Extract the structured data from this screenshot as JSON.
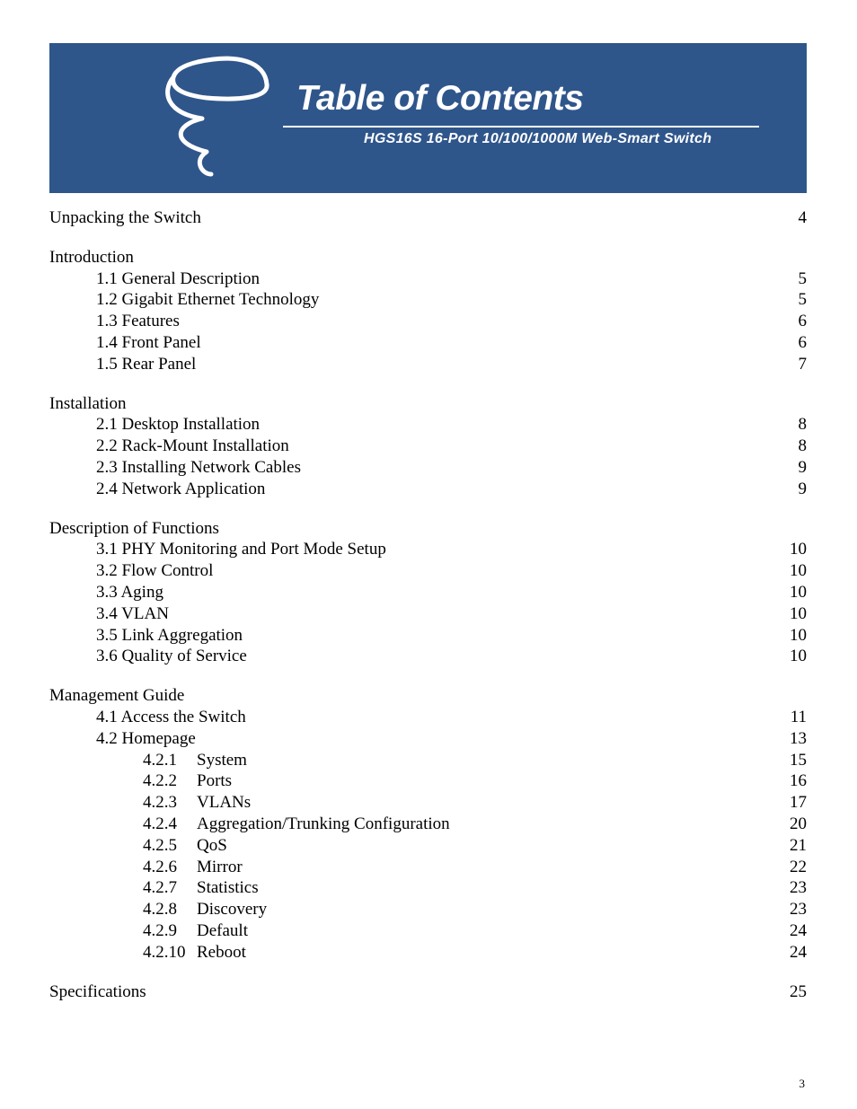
{
  "banner": {
    "bg_color": "#2f568b",
    "title": "Table of Contents",
    "subtitle": "HGS16S  16-Port 10/100/1000M Web-Smart Switch",
    "text_color": "#ffffff",
    "title_fontsize": 39,
    "subtitle_fontsize": 16,
    "logo_stroke": "#ffffff"
  },
  "page_number": "3",
  "toc": {
    "sections": [
      {
        "heading": "Unpacking the Switch",
        "page": "4",
        "items": []
      },
      {
        "heading": "Introduction",
        "page": "",
        "items": [
          {
            "num": "1.1",
            "label": "General Description",
            "page": "5"
          },
          {
            "num": "1.2",
            "label": "Gigabit Ethernet Technology",
            "page": "5"
          },
          {
            "num": "1.3",
            "label": "Features",
            "page": "6"
          },
          {
            "num": "1.4",
            "label": "Front Panel",
            "page": "6"
          },
          {
            "num": "1.5",
            "label": "Rear Panel",
            "page": "7"
          }
        ]
      },
      {
        "heading": "Installation",
        "page": "",
        "items": [
          {
            "num": "2.1",
            "label": "Desktop Installation",
            "page": "8"
          },
          {
            "num": "2.2",
            "label": "Rack-Mount Installation",
            "page": "8"
          },
          {
            "num": "2.3",
            "label": "Installing Network Cables",
            "page": "9"
          },
          {
            "num": "2.4",
            "label": "Network Application",
            "page": "9"
          }
        ]
      },
      {
        "heading": "Description of Functions",
        "page": "",
        "items": [
          {
            "num": "3.1",
            "label": "PHY Monitoring and Port Mode Setup",
            "page": "10"
          },
          {
            "num": "3.2",
            "label": "Flow Control",
            "page": "10"
          },
          {
            "num": "3.3",
            "label": "Aging",
            "page": "10"
          },
          {
            "num": "3.4",
            "label": "VLAN",
            "page": "10"
          },
          {
            "num": "3.5",
            "label": "Link Aggregation",
            "page": "10"
          },
          {
            "num": "3.6",
            "label": "Quality of Service",
            "page": "10"
          }
        ]
      },
      {
        "heading": "Management Guide",
        "page": "",
        "items": [
          {
            "num": "4.1",
            "label": "Access the Switch",
            "page": "11"
          },
          {
            "num": "4.2",
            "label": "Homepage",
            "page": "13",
            "sub": [
              {
                "num": "4.2.1",
                "label": "System",
                "page": "15"
              },
              {
                "num": "4.2.2",
                "label": "Ports",
                "page": "16"
              },
              {
                "num": "4.2.3",
                "label": "VLANs",
                "page": "17"
              },
              {
                "num": "4.2.4",
                "label": "Aggregation/Trunking Configuration",
                "page": "20"
              },
              {
                "num": "4.2.5",
                "label": "QoS",
                "page": "21"
              },
              {
                "num": "4.2.6",
                "label": "Mirror",
                "page": "22"
              },
              {
                "num": "4.2.7",
                "label": "Statistics",
                "page": "23"
              },
              {
                "num": "4.2.8",
                "label": "Discovery",
                "page": "23"
              },
              {
                "num": "4.2.9",
                "label": "Default",
                "page": "24"
              },
              {
                "num": "4.2.10",
                "label": "Reboot",
                "page": "24"
              }
            ]
          }
        ]
      },
      {
        "heading": "Specifications",
        "page": "25",
        "items": []
      }
    ]
  },
  "colors": {
    "page_bg": "#ffffff",
    "text": "#000000"
  },
  "typography": {
    "body_font": "Times New Roman",
    "body_size": 19,
    "banner_font": "Arial"
  }
}
